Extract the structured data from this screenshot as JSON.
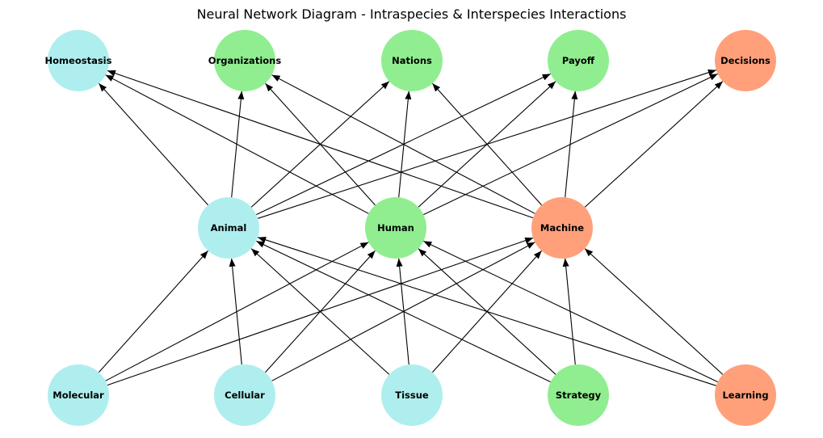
{
  "title": "Neural Network Diagram - Intraspecies & Interspecies Interactions",
  "colors": {
    "cyan": "#afeeee",
    "green": "#90ee90",
    "salmon": "#ffa07a"
  },
  "layers": {
    "top": [
      {
        "id": "homeostasis",
        "label": "Homeostasis",
        "color": "cyan"
      },
      {
        "id": "organizations",
        "label": "Organizations",
        "color": "green"
      },
      {
        "id": "nations",
        "label": "Nations",
        "color": "green"
      },
      {
        "id": "payoff",
        "label": "Payoff",
        "color": "green"
      },
      {
        "id": "decisions",
        "label": "Decisions",
        "color": "salmon"
      }
    ],
    "middle": [
      {
        "id": "animal",
        "label": "Animal",
        "color": "cyan"
      },
      {
        "id": "human",
        "label": "Human",
        "color": "green"
      },
      {
        "id": "machine",
        "label": "Machine",
        "color": "salmon"
      }
    ],
    "bottom": [
      {
        "id": "molecular",
        "label": "Molecular",
        "color": "cyan"
      },
      {
        "id": "cellular",
        "label": "Cellular",
        "color": "cyan"
      },
      {
        "id": "tissue",
        "label": "Tissue",
        "color": "cyan"
      },
      {
        "id": "strategy",
        "label": "Strategy",
        "color": "green"
      },
      {
        "id": "learning",
        "label": "Learning",
        "color": "salmon"
      }
    ]
  },
  "edges": [
    [
      "molecular",
      "animal"
    ],
    [
      "molecular",
      "human"
    ],
    [
      "molecular",
      "machine"
    ],
    [
      "cellular",
      "animal"
    ],
    [
      "cellular",
      "human"
    ],
    [
      "cellular",
      "machine"
    ],
    [
      "tissue",
      "animal"
    ],
    [
      "tissue",
      "human"
    ],
    [
      "tissue",
      "machine"
    ],
    [
      "strategy",
      "animal"
    ],
    [
      "strategy",
      "human"
    ],
    [
      "strategy",
      "machine"
    ],
    [
      "learning",
      "animal"
    ],
    [
      "learning",
      "human"
    ],
    [
      "learning",
      "machine"
    ],
    [
      "animal",
      "homeostasis"
    ],
    [
      "animal",
      "organizations"
    ],
    [
      "animal",
      "nations"
    ],
    [
      "animal",
      "payoff"
    ],
    [
      "animal",
      "decisions"
    ],
    [
      "human",
      "homeostasis"
    ],
    [
      "human",
      "organizations"
    ],
    [
      "human",
      "nations"
    ],
    [
      "human",
      "payoff"
    ],
    [
      "human",
      "decisions"
    ],
    [
      "machine",
      "homeostasis"
    ],
    [
      "machine",
      "organizations"
    ],
    [
      "machine",
      "nations"
    ],
    [
      "machine",
      "payoff"
    ],
    [
      "machine",
      "decisions"
    ]
  ]
}
